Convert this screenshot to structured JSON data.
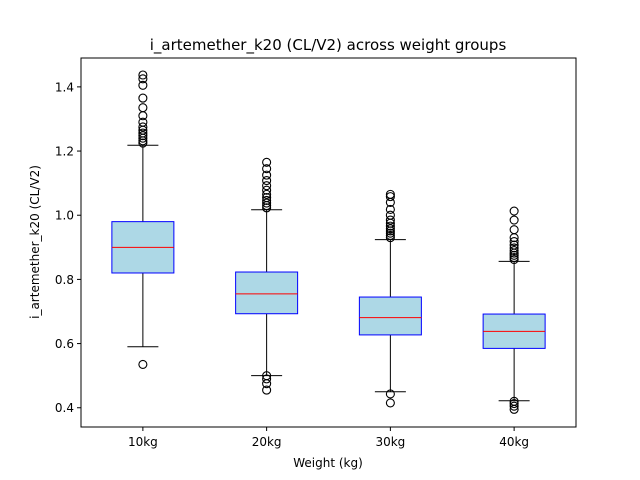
{
  "chart_data": {
    "type": "boxplot",
    "title": "i_artemether_k20 (CL/V2) across weight groups",
    "xlabel": "Weight (kg)",
    "ylabel": "i_artemether_k20 (CL/V2)",
    "ylim": [
      0.34,
      1.49
    ],
    "yticks": [
      0.4,
      0.6,
      0.8,
      1.0,
      1.2,
      1.4
    ],
    "ytick_labels": [
      "0.4",
      "0.6",
      "0.8",
      "1.0",
      "1.2",
      "1.4"
    ],
    "grid": false,
    "legend": "none",
    "colors": {
      "box_fill": "#add8e6",
      "box_edge": "#0000ff",
      "median": "#ff0000",
      "whisker": "#000000",
      "flier": "#000000"
    },
    "categories": [
      "10kg",
      "20kg",
      "30kg",
      "40kg"
    ],
    "boxes": [
      {
        "label": "10kg",
        "whisker_low": 0.59,
        "q1": 0.82,
        "median": 0.9,
        "q3": 0.98,
        "whisker_high": 1.218,
        "fliers": [
          0.535,
          1.225,
          1.232,
          1.24,
          1.248,
          1.256,
          1.265,
          1.275,
          1.29,
          1.31,
          1.335,
          1.365,
          1.405,
          1.425,
          1.437
        ]
      },
      {
        "label": "20kg",
        "whisker_low": 0.5,
        "q1": 0.693,
        "median": 0.755,
        "q3": 0.823,
        "whisker_high": 1.017,
        "fliers": [
          0.455,
          0.475,
          0.49,
          0.5,
          1.023,
          1.03,
          1.038,
          1.046,
          1.055,
          1.065,
          1.078,
          1.092,
          1.108,
          1.125,
          1.145,
          1.165
        ]
      },
      {
        "label": "30kg",
        "whisker_low": 0.45,
        "q1": 0.627,
        "median": 0.681,
        "q3": 0.745,
        "whisker_high": 0.924,
        "fliers": [
          0.415,
          0.443,
          0.93,
          0.937,
          0.944,
          0.951,
          0.958,
          0.966,
          0.975,
          0.985,
          1.0,
          1.018,
          1.04,
          1.058,
          1.065
        ]
      },
      {
        "label": "40kg",
        "whisker_low": 0.422,
        "q1": 0.585,
        "median": 0.638,
        "q3": 0.692,
        "whisker_high": 0.856,
        "fliers": [
          0.395,
          0.405,
          0.413,
          0.42,
          0.862,
          0.868,
          0.875,
          0.882,
          0.89,
          0.898,
          0.907,
          0.918,
          0.93,
          0.955,
          0.985,
          1.013
        ]
      }
    ]
  }
}
